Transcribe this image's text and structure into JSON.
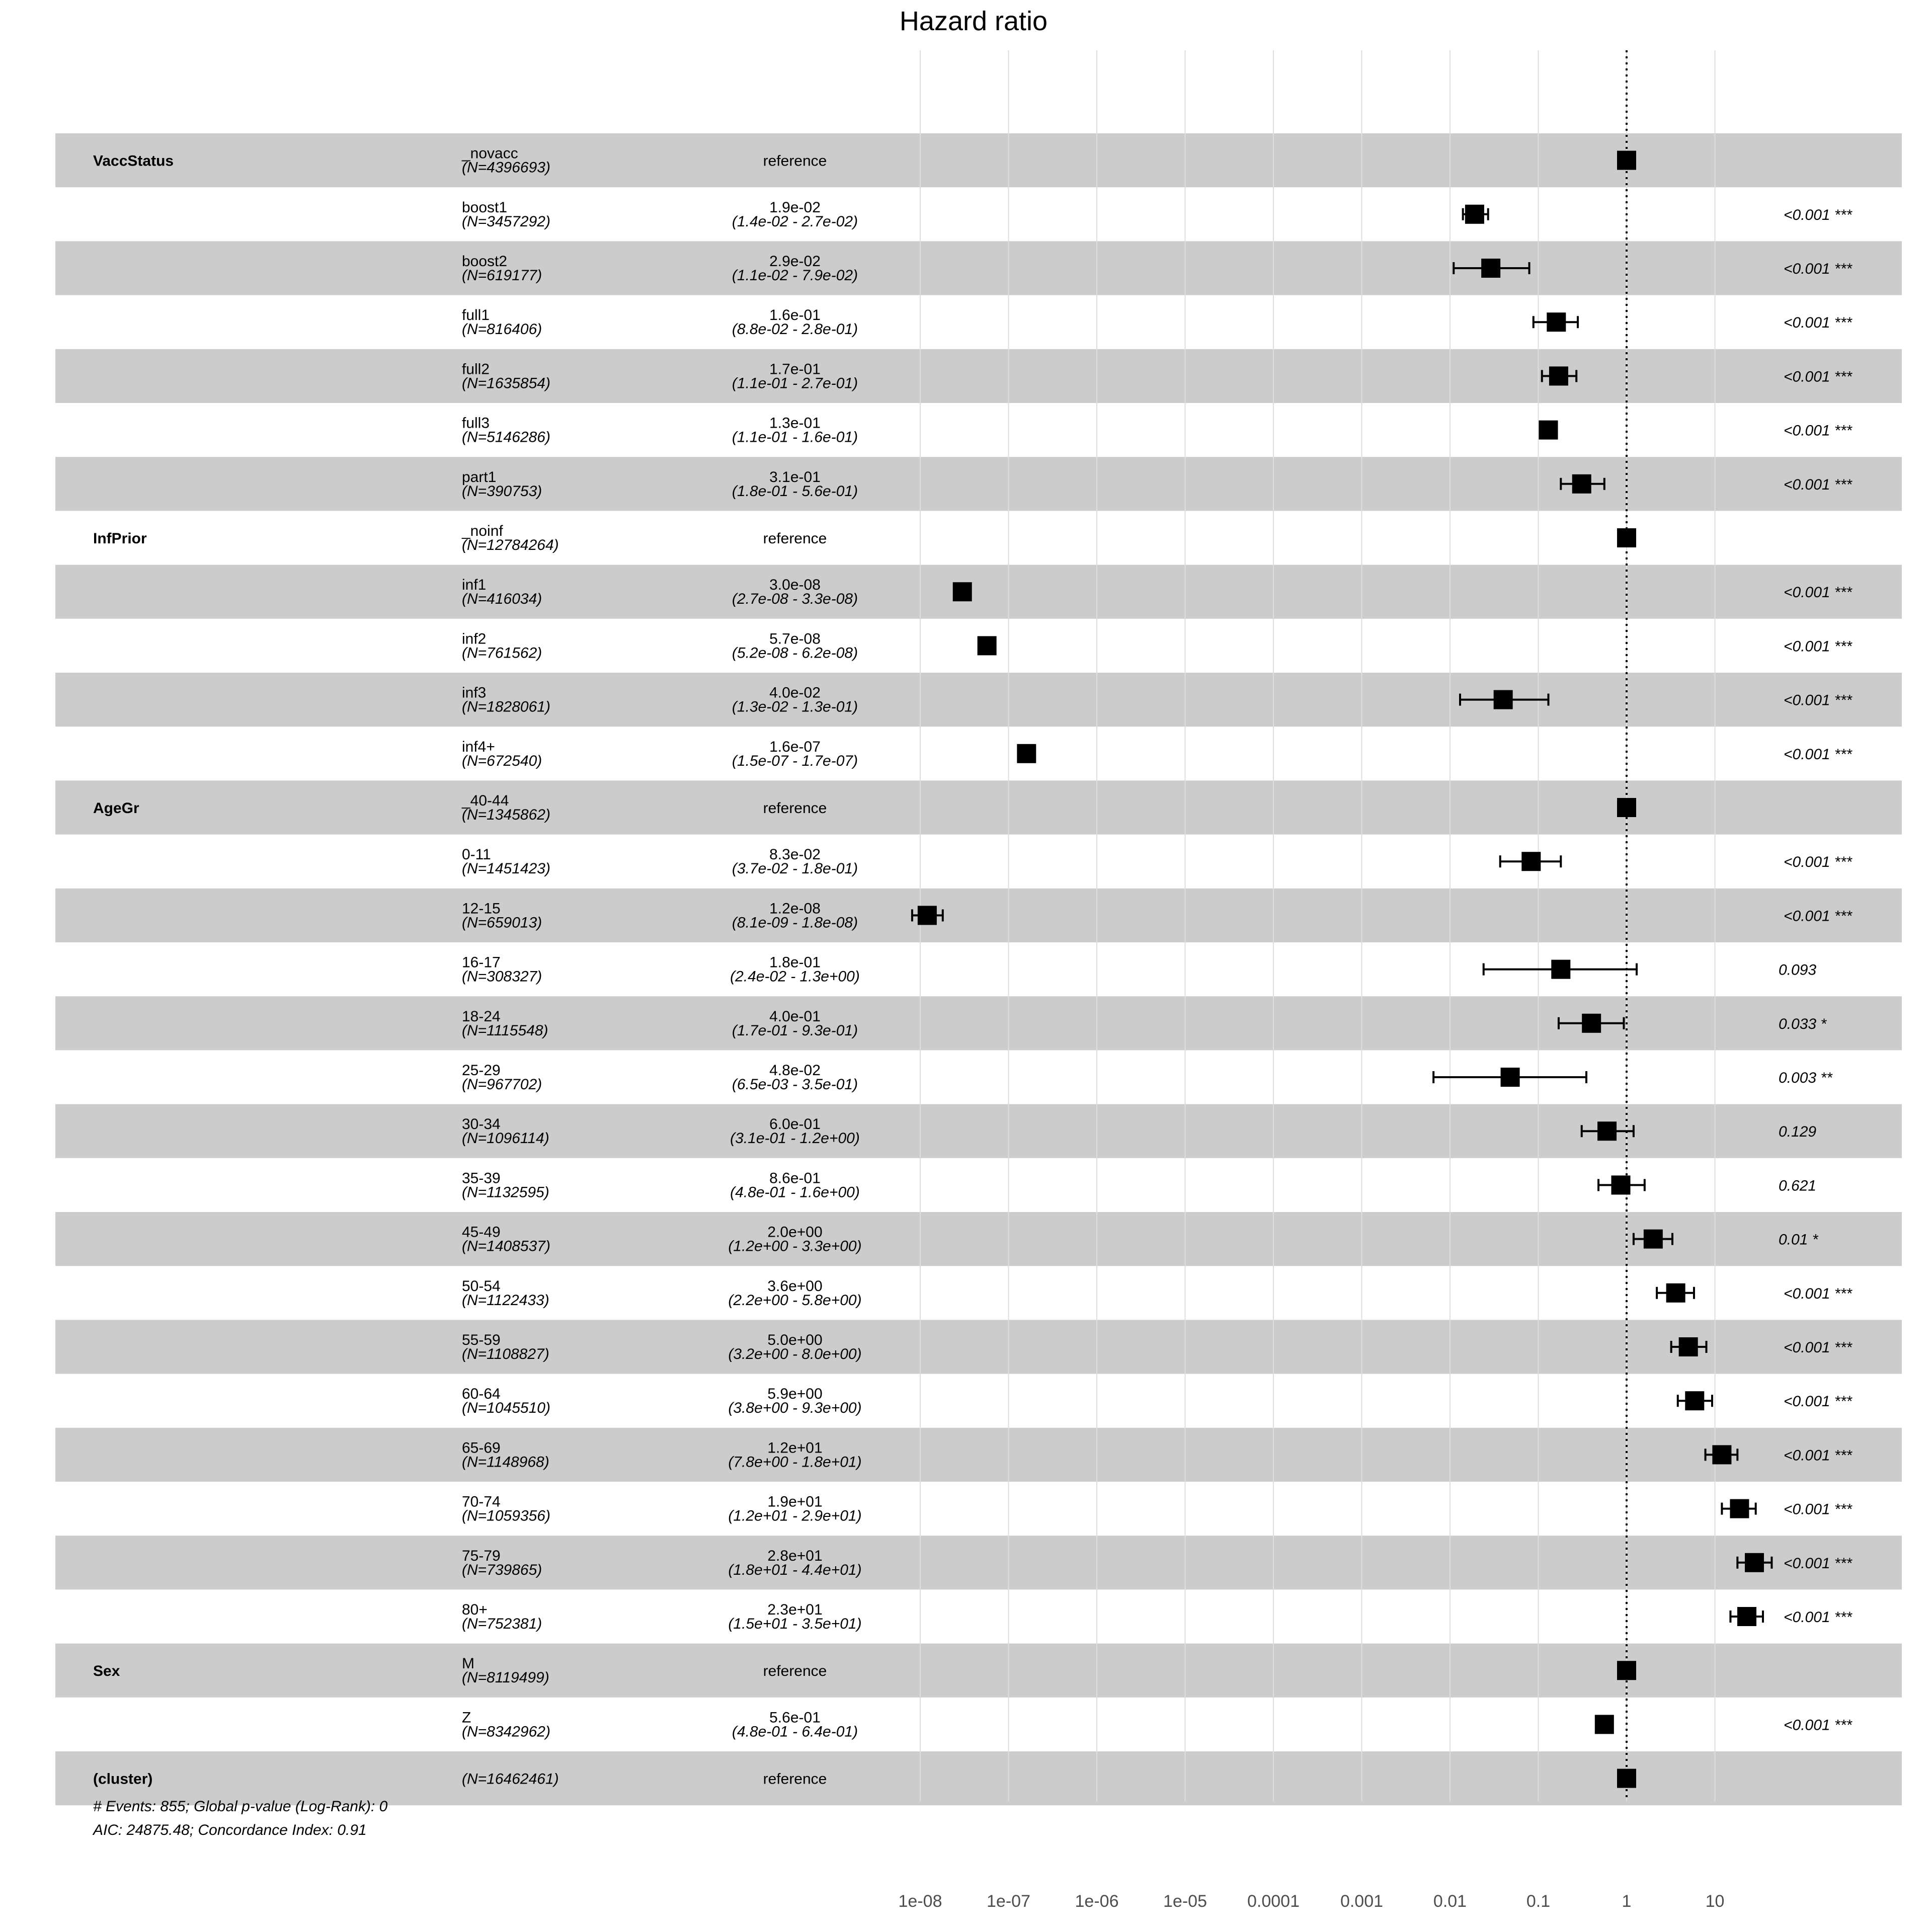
{
  "chart_data": {
    "type": "forest",
    "title": "Hazard ratio",
    "x_scale": "log",
    "xlim": [
      1e-09,
      100
    ],
    "reference_value": 1,
    "ticks": [
      {
        "v": 1e-08,
        "label": "1e-08"
      },
      {
        "v": 1e-07,
        "label": "1e-07"
      },
      {
        "v": 1e-06,
        "label": "1e-06"
      },
      {
        "v": 1e-05,
        "label": "1e-05"
      },
      {
        "v": 0.0001,
        "label": "0.0001"
      },
      {
        "v": 0.001,
        "label": "0.001"
      },
      {
        "v": 0.01,
        "label": "0.01"
      },
      {
        "v": 0.1,
        "label": "0.1"
      },
      {
        "v": 1,
        "label": "1"
      },
      {
        "v": 10,
        "label": "10"
      }
    ],
    "rows": [
      {
        "var": "VaccStatus",
        "level": "_novacc",
        "n": "(N=4396693)",
        "est": "reference",
        "ci": "",
        "p": "",
        "hr": 1,
        "lo": null,
        "hi": null
      },
      {
        "var": "",
        "level": "boost1",
        "n": "(N=3457292)",
        "est": "1.9e-02",
        "ci": "(1.4e-02 - 2.7e-02)",
        "p": "<0.001 ***",
        "hr": 0.019,
        "lo": 0.014,
        "hi": 0.027
      },
      {
        "var": "",
        "level": "boost2",
        "n": "(N=619177)",
        "est": "2.9e-02",
        "ci": "(1.1e-02 - 7.9e-02)",
        "p": "<0.001 ***",
        "hr": 0.029,
        "lo": 0.011,
        "hi": 0.079
      },
      {
        "var": "",
        "level": "full1",
        "n": "(N=816406)",
        "est": "1.6e-01",
        "ci": "(8.8e-02 - 2.8e-01)",
        "p": "<0.001 ***",
        "hr": 0.16,
        "lo": 0.088,
        "hi": 0.28
      },
      {
        "var": "",
        "level": "full2",
        "n": "(N=1635854)",
        "est": "1.7e-01",
        "ci": "(1.1e-01 - 2.7e-01)",
        "p": "<0.001 ***",
        "hr": 0.17,
        "lo": 0.11,
        "hi": 0.27
      },
      {
        "var": "",
        "level": "full3",
        "n": "(N=5146286)",
        "est": "1.3e-01",
        "ci": "(1.1e-01 - 1.6e-01)",
        "p": "<0.001 ***",
        "hr": 0.13,
        "lo": 0.11,
        "hi": 0.16
      },
      {
        "var": "",
        "level": "part1",
        "n": "(N=390753)",
        "est": "3.1e-01",
        "ci": "(1.8e-01 - 5.6e-01)",
        "p": "<0.001 ***",
        "hr": 0.31,
        "lo": 0.18,
        "hi": 0.56
      },
      {
        "var": "InfPrior",
        "level": "_noinf",
        "n": "(N=12784264)",
        "est": "reference",
        "ci": "",
        "p": "",
        "hr": 1,
        "lo": null,
        "hi": null
      },
      {
        "var": "",
        "level": "inf1",
        "n": "(N=416034)",
        "est": "3.0e-08",
        "ci": "(2.7e-08 - 3.3e-08)",
        "p": "<0.001 ***",
        "hr": 3e-08,
        "lo": 2.7e-08,
        "hi": 3.3e-08
      },
      {
        "var": "",
        "level": "inf2",
        "n": "(N=761562)",
        "est": "5.7e-08",
        "ci": "(5.2e-08 - 6.2e-08)",
        "p": "<0.001 ***",
        "hr": 5.7e-08,
        "lo": 5.2e-08,
        "hi": 6.2e-08
      },
      {
        "var": "",
        "level": "inf3",
        "n": "(N=1828061)",
        "est": "4.0e-02",
        "ci": "(1.3e-02 - 1.3e-01)",
        "p": "<0.001 ***",
        "hr": 0.04,
        "lo": 0.013,
        "hi": 0.13
      },
      {
        "var": "",
        "level": "inf4+",
        "n": "(N=672540)",
        "est": "1.6e-07",
        "ci": "(1.5e-07 - 1.7e-07)",
        "p": "<0.001 ***",
        "hr": 1.6e-07,
        "lo": 1.5e-07,
        "hi": 1.7e-07
      },
      {
        "var": "AgeGr",
        "level": "_40-44",
        "n": "(N=1345862)",
        "est": "reference",
        "ci": "",
        "p": "",
        "hr": 1,
        "lo": null,
        "hi": null
      },
      {
        "var": "",
        "level": "0-11",
        "n": "(N=1451423)",
        "est": "8.3e-02",
        "ci": "(3.7e-02 - 1.8e-01)",
        "p": "<0.001 ***",
        "hr": 0.083,
        "lo": 0.037,
        "hi": 0.18
      },
      {
        "var": "",
        "level": "12-15",
        "n": "(N=659013)",
        "est": "1.2e-08",
        "ci": "(8.1e-09 - 1.8e-08)",
        "p": "<0.001 ***",
        "hr": 1.2e-08,
        "lo": 8.1e-09,
        "hi": 1.8e-08
      },
      {
        "var": "",
        "level": "16-17",
        "n": "(N=308327)",
        "est": "1.8e-01",
        "ci": "(2.4e-02 - 1.3e+00)",
        "p": "0.093",
        "hr": 0.18,
        "lo": 0.024,
        "hi": 1.3
      },
      {
        "var": "",
        "level": "18-24",
        "n": "(N=1115548)",
        "est": "4.0e-01",
        "ci": "(1.7e-01 - 9.3e-01)",
        "p": "0.033 *",
        "hr": 0.4,
        "lo": 0.17,
        "hi": 0.93
      },
      {
        "var": "",
        "level": "25-29",
        "n": "(N=967702)",
        "est": "4.8e-02",
        "ci": "(6.5e-03 - 3.5e-01)",
        "p": "0.003 **",
        "hr": 0.048,
        "lo": 0.0065,
        "hi": 0.35
      },
      {
        "var": "",
        "level": "30-34",
        "n": "(N=1096114)",
        "est": "6.0e-01",
        "ci": "(3.1e-01 - 1.2e+00)",
        "p": "0.129",
        "hr": 0.6,
        "lo": 0.31,
        "hi": 1.2
      },
      {
        "var": "",
        "level": "35-39",
        "n": "(N=1132595)",
        "est": "8.6e-01",
        "ci": "(4.8e-01 - 1.6e+00)",
        "p": "0.621",
        "hr": 0.86,
        "lo": 0.48,
        "hi": 1.6
      },
      {
        "var": "",
        "level": "45-49",
        "n": "(N=1408537)",
        "est": "2.0e+00",
        "ci": "(1.2e+00 - 3.3e+00)",
        "p": "0.01 *",
        "hr": 2.0,
        "lo": 1.2,
        "hi": 3.3
      },
      {
        "var": "",
        "level": "50-54",
        "n": "(N=1122433)",
        "est": "3.6e+00",
        "ci": "(2.2e+00 - 5.8e+00)",
        "p": "<0.001 ***",
        "hr": 3.6,
        "lo": 2.2,
        "hi": 5.8
      },
      {
        "var": "",
        "level": "55-59",
        "n": "(N=1108827)",
        "est": "5.0e+00",
        "ci": "(3.2e+00 - 8.0e+00)",
        "p": "<0.001 ***",
        "hr": 5.0,
        "lo": 3.2,
        "hi": 8.0
      },
      {
        "var": "",
        "level": "60-64",
        "n": "(N=1045510)",
        "est": "5.9e+00",
        "ci": "(3.8e+00 - 9.3e+00)",
        "p": "<0.001 ***",
        "hr": 5.9,
        "lo": 3.8,
        "hi": 9.3
      },
      {
        "var": "",
        "level": "65-69",
        "n": "(N=1148968)",
        "est": "1.2e+01",
        "ci": "(7.8e+00 - 1.8e+01)",
        "p": "<0.001 ***",
        "hr": 12,
        "lo": 7.8,
        "hi": 18
      },
      {
        "var": "",
        "level": "70-74",
        "n": "(N=1059356)",
        "est": "1.9e+01",
        "ci": "(1.2e+01 - 2.9e+01)",
        "p": "<0.001 ***",
        "hr": 19,
        "lo": 12,
        "hi": 29
      },
      {
        "var": "",
        "level": "75-79",
        "n": "(N=739865)",
        "est": "2.8e+01",
        "ci": "(1.8e+01 - 4.4e+01)",
        "p": "<0.001 ***",
        "hr": 28,
        "lo": 18,
        "hi": 44
      },
      {
        "var": "",
        "level": "80+",
        "n": "(N=752381)",
        "est": "2.3e+01",
        "ci": "(1.5e+01 - 3.5e+01)",
        "p": "<0.001 ***",
        "hr": 23,
        "lo": 15,
        "hi": 35
      },
      {
        "var": "Sex",
        "level": "M",
        "n": "(N=8119499)",
        "est": "reference",
        "ci": "",
        "p": "",
        "hr": 1,
        "lo": null,
        "hi": null
      },
      {
        "var": "",
        "level": "Z",
        "n": "(N=8342962)",
        "est": "5.6e-01",
        "ci": "(4.8e-01 - 6.4e-01)",
        "p": "<0.001 ***",
        "hr": 0.56,
        "lo": 0.48,
        "hi": 0.64
      },
      {
        "var": "(cluster)",
        "level": "",
        "n": "(N=16462461)",
        "est": "reference",
        "ci": "",
        "p": "",
        "hr": 1,
        "lo": null,
        "hi": null
      }
    ],
    "footnotes": [
      "# Events: 855; Global p-value (Log-Rank): 0",
      "AIC: 24875.48; Concordance Index: 0.91"
    ]
  }
}
